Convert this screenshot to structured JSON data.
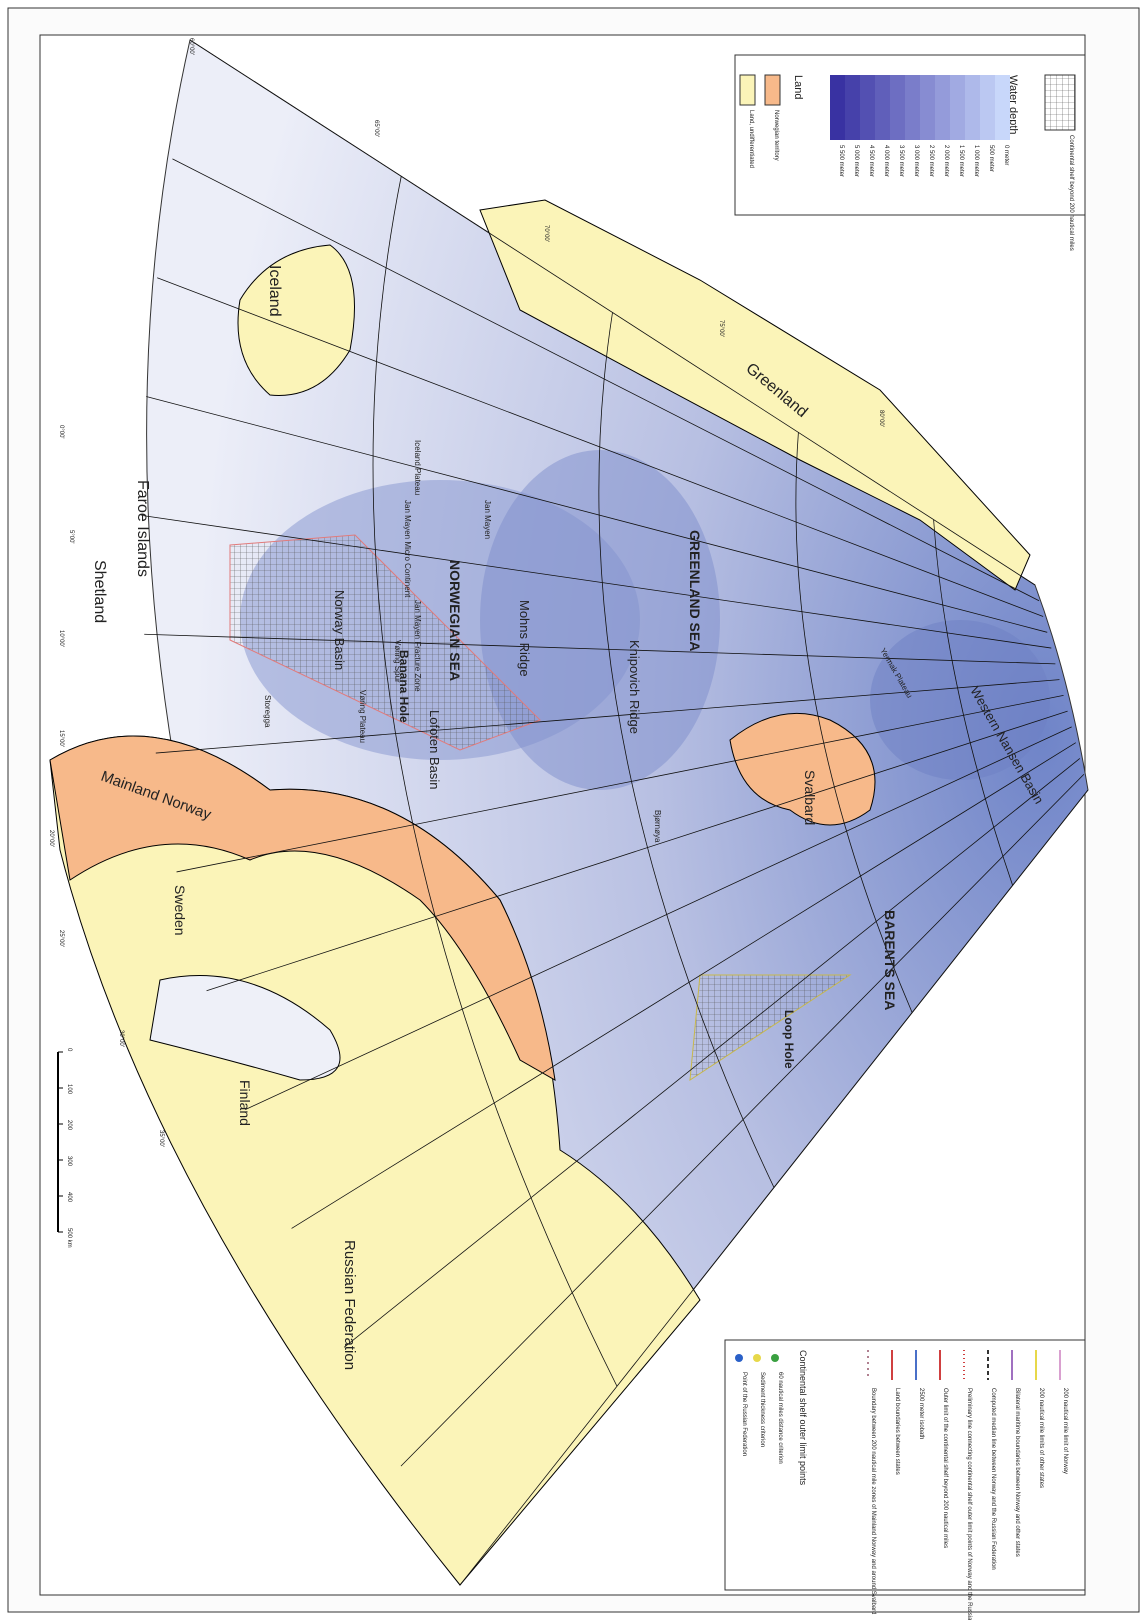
{
  "map": {
    "labels": [
      "Greenland",
      "Iceland",
      "Faroe Islands",
      "Shetland",
      "Mainland Norway",
      "Sweden",
      "Finland",
      "Russian Federation",
      "Svalbard",
      "GREENLAND SEA",
      "NORWEGIAN SEA",
      "BARENTS SEA",
      "Loop Hole",
      "Banana Hole",
      "Norway Basin",
      "Lofoten Basin",
      "Mohns Ridge",
      "Knipovich Ridge",
      "Western Nansen Basin",
      "Yermak Plateau",
      "Jan Mayen",
      "Jan Mayen Micro Continent",
      "Iceland Plateau",
      "Vøring Plateau",
      "Storegga",
      "Bjørnøya",
      "Jan Mayen Fracture Zone",
      "Vøring Spur"
    ],
    "graticule": [
      "60°00'",
      "65°00'",
      "70°00'",
      "75°00'",
      "80°00'",
      "0°00'",
      "5°00'",
      "10°00'",
      "15°00'",
      "20°00'",
      "25°00'",
      "30°00'",
      "35°00'"
    ],
    "legend_depth": {
      "title": "Water depth",
      "levels": [
        "0 meter",
        "500 meter",
        "1 000 meter",
        "1 500 meter",
        "2 000 meter",
        "2 500 meter",
        "3 000 meter",
        "3 500 meter",
        "4 000 meter",
        "4 500 meter",
        "5 000 meter",
        "5 500 meter"
      ]
    },
    "legend_land": {
      "title": "Land",
      "items": [
        "Norwegian territory",
        "Land, undifferentiated"
      ]
    },
    "legend_shelf": "Continental shelf beyond 200 nautical miles",
    "legend_lines": [
      "200 nautical mile limit of Norway",
      "200 nautical mile limits of other states",
      "Bilateral maritime boundaries between Norway and other states",
      "Computed median line between Norway and the Russian Federation",
      "Preliminary line connecting continental shelf outer limit points of Norway and the Russian Federation",
      "Outer limit of the continental shelf beyond 200 nautical miles",
      "2500 meter isobath",
      "Land boundaries between states",
      "Boundary between 200 nautical mile zones of Mainland Norway and around Svalbard"
    ],
    "legend_points": {
      "title": "Continental shelf outer limit points",
      "items": [
        "60 nautical miles distance criterion",
        "Sediment thickness criterion",
        "Point of the Russian Federation"
      ]
    },
    "scale": {
      "ticks": [
        "0",
        "100",
        "200",
        "300",
        "400",
        "500 km"
      ]
    }
  }
}
